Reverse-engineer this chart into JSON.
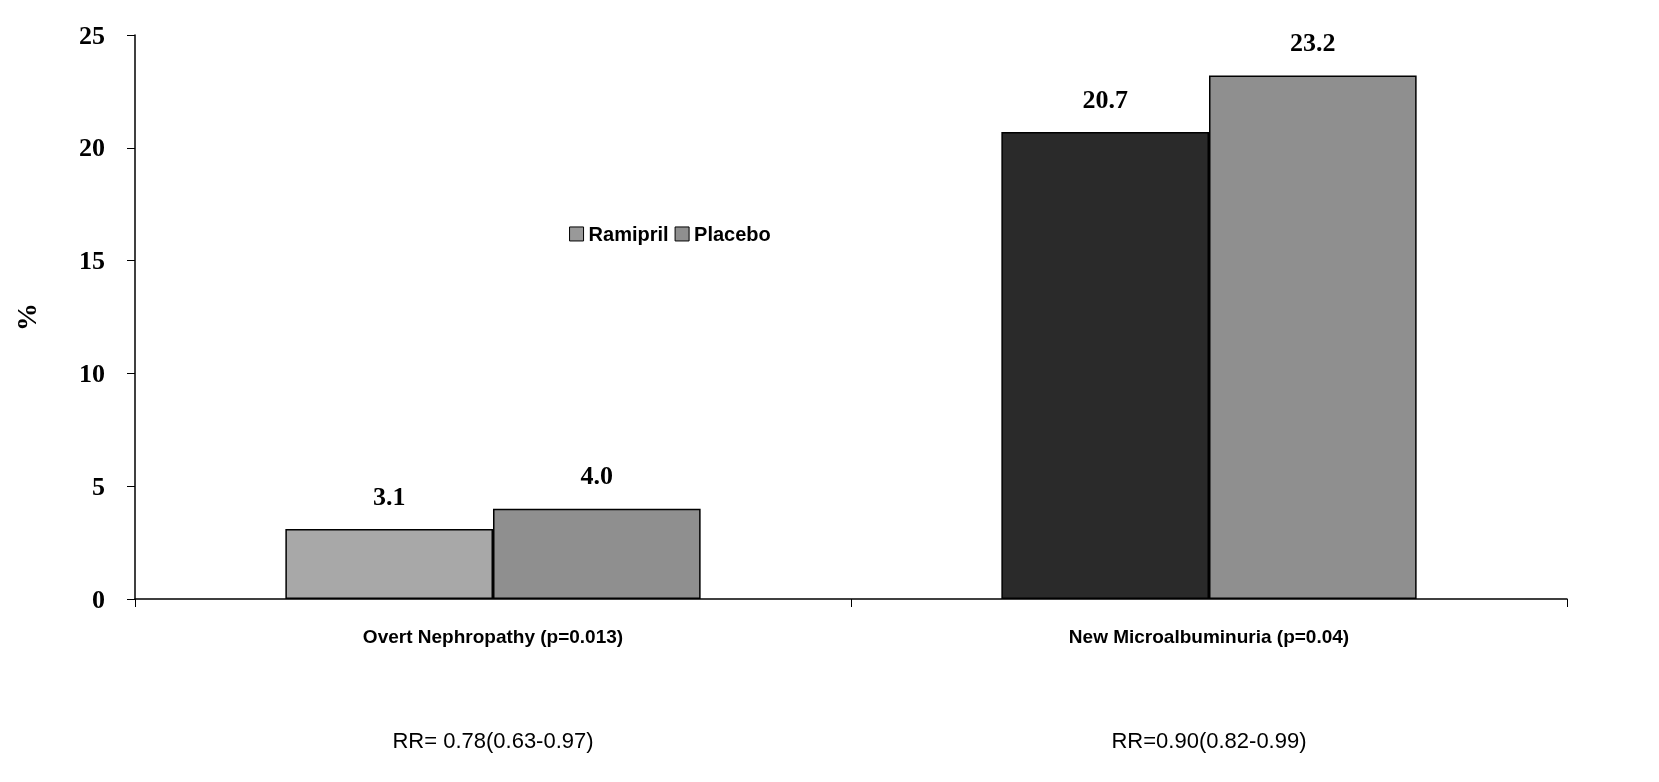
{
  "chart_data": {
    "type": "bar",
    "ylabel": "%",
    "categories": [
      "Overt Nephropathy (p=0.013)",
      "New Microalbuminuria (p=0.04)"
    ],
    "series": [
      {
        "name": "Ramipril",
        "color": "#999999",
        "colors": [
          "#a8a8a8",
          "#2a2a2a"
        ],
        "values": [
          3.1,
          20.7
        ]
      },
      {
        "name": "Placebo",
        "color": "#8f8f8f",
        "values": [
          4.0,
          23.2
        ]
      }
    ],
    "value_labels": [
      [
        "3.1",
        "20.7"
      ],
      [
        "4.0",
        "23.2"
      ]
    ],
    "ylim": [
      0,
      25
    ],
    "yticks": [
      0,
      5,
      10,
      15,
      20,
      25
    ],
    "grid": false,
    "legend": "center",
    "annotations": [
      "RR= 0.78(0.63-0.97)",
      "RR=0.90(0.82-0.99)"
    ]
  }
}
